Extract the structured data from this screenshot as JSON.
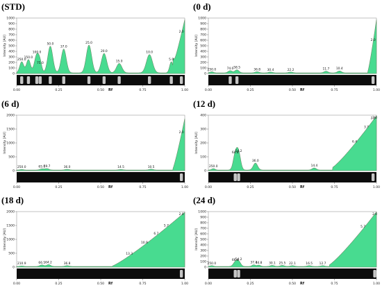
{
  "chart_data": [
    {
      "type": "area",
      "title": "(STD)",
      "ylabel": "Intensity [AU]",
      "xlabel": "Rf",
      "xlim": [
        0,
        1
      ],
      "ylim": [
        0,
        1000
      ],
      "yticks": [
        0,
        100,
        200,
        300,
        400,
        500,
        600,
        700,
        800,
        900,
        1000
      ],
      "xticks": [
        0.0,
        0.25,
        0.5,
        0.75,
        1.0
      ],
      "front": {
        "start": 0.93,
        "startValue": 150,
        "top": 960
      },
      "peaks": [
        {
          "rf": 0.03,
          "h": 200,
          "w": 0.012,
          "label": "250.0"
        },
        {
          "rf": 0.07,
          "h": 240,
          "w": 0.012,
          "label": "150.0"
        },
        {
          "rf": 0.12,
          "h": 330,
          "w": 0.014,
          "label": "100.0"
        },
        {
          "rf": 0.14,
          "h": 140,
          "w": 0.01,
          "label": "75.0"
        },
        {
          "rf": 0.2,
          "h": 480,
          "w": 0.015,
          "label": "50.0"
        },
        {
          "rf": 0.28,
          "h": 430,
          "w": 0.015,
          "label": "37.0"
        },
        {
          "rf": 0.43,
          "h": 500,
          "w": 0.016,
          "label": "25.0"
        },
        {
          "rf": 0.52,
          "h": 350,
          "w": 0.016,
          "label": "20.0"
        },
        {
          "rf": 0.61,
          "h": 170,
          "w": 0.016,
          "label": "15.0"
        },
        {
          "rf": 0.79,
          "h": 330,
          "w": 0.018,
          "label": "10.0"
        },
        {
          "rf": 0.92,
          "h": 200,
          "w": 0.01,
          "label": "5.0"
        },
        {
          "rf": 0.98,
          "h": 0,
          "w": 0.01,
          "label": "2.0"
        }
      ],
      "bands": [
        0.03,
        0.07,
        0.12,
        0.14,
        0.2,
        0.28,
        0.43,
        0.52,
        0.61,
        0.79,
        0.92,
        0.98
      ]
    },
    {
      "type": "area",
      "title": "(0 d)",
      "ylabel": "Intensity [AU]",
      "xlabel": "Rf",
      "xlim": [
        0,
        1
      ],
      "ylim": [
        0,
        1000
      ],
      "yticks": [
        0,
        100,
        200,
        300,
        400,
        500,
        600,
        700,
        800,
        900,
        1000
      ],
      "xticks": [
        0.0,
        0.25,
        0.5,
        0.75,
        1.0
      ],
      "front": {
        "start": 0.95,
        "startValue": 40,
        "top": 960
      },
      "peaks": [
        {
          "rf": 0.02,
          "h": 20,
          "w": 0.01,
          "label": "250.0"
        },
        {
          "rf": 0.13,
          "h": 40,
          "w": 0.012,
          "label": "74.0"
        },
        {
          "rf": 0.17,
          "h": 55,
          "w": 0.012,
          "label": "58.5"
        },
        {
          "rf": 0.29,
          "h": 20,
          "w": 0.012,
          "label": "36.8"
        },
        {
          "rf": 0.37,
          "h": 15,
          "w": 0.012,
          "label": "30.4"
        },
        {
          "rf": 0.49,
          "h": 15,
          "w": 0.012,
          "label": "22.2"
        },
        {
          "rf": 0.7,
          "h": 30,
          "w": 0.012,
          "label": "11.7"
        },
        {
          "rf": 0.78,
          "h": 35,
          "w": 0.012,
          "label": "10.4"
        },
        {
          "rf": 0.98,
          "h": 0,
          "w": 0.01,
          "label": "2.0"
        }
      ],
      "bands": [
        0.13,
        0.17,
        0.98
      ]
    },
    {
      "type": "area",
      "title": "(6 d)",
      "ylabel": "Intensity [AU]",
      "xlabel": "Rf",
      "xlim": [
        0,
        1
      ],
      "ylim": [
        0,
        2000
      ],
      "yticks": [
        0,
        500,
        1000,
        1500,
        2000
      ],
      "xticks": [
        0.0,
        0.25,
        0.5,
        0.75,
        1.0
      ],
      "front": {
        "start": 0.93,
        "startValue": 60,
        "top": 1850
      },
      "peaks": [
        {
          "rf": 0.03,
          "h": 20,
          "w": 0.01,
          "label": "250.0"
        },
        {
          "rf": 0.15,
          "h": 40,
          "w": 0.012,
          "label": "65.0"
        },
        {
          "rf": 0.18,
          "h": 50,
          "w": 0.012,
          "label": "59.7"
        },
        {
          "rf": 0.3,
          "h": 25,
          "w": 0.012,
          "label": "36.0"
        },
        {
          "rf": 0.62,
          "h": 20,
          "w": 0.012,
          "label": "14.5"
        },
        {
          "rf": 0.8,
          "h": 30,
          "w": 0.012,
          "label": "10.5"
        },
        {
          "rf": 0.98,
          "h": 0,
          "w": 0.01,
          "label": "2.0"
        }
      ],
      "bands": [
        0.98
      ]
    },
    {
      "type": "area",
      "title": "(12 d)",
      "ylabel": "Intensity [AU]",
      "xlabel": "Rf",
      "xlim": [
        0,
        1
      ],
      "ylim": [
        0,
        400
      ],
      "yticks": [
        0,
        100,
        200,
        300,
        400
      ],
      "xticks": [
        0.0,
        0.25,
        0.5,
        0.75,
        1.0
      ],
      "front": {
        "start": 0.74,
        "startValue": 20,
        "top": 390
      },
      "peaks": [
        {
          "rf": 0.03,
          "h": 10,
          "w": 0.01,
          "label": "250.0"
        },
        {
          "rf": 0.16,
          "h": 110,
          "w": 0.012,
          "label": "64.8"
        },
        {
          "rf": 0.18,
          "h": 120,
          "w": 0.012,
          "label": "54.2"
        },
        {
          "rf": 0.28,
          "h": 50,
          "w": 0.013,
          "label": "36.0"
        },
        {
          "rf": 0.63,
          "h": 15,
          "w": 0.012,
          "label": "14.4"
        },
        {
          "rf": 0.87,
          "h": 0,
          "w": 0.01,
          "label": "6.4"
        },
        {
          "rf": 0.94,
          "h": 0,
          "w": 0.01,
          "label": "3.7"
        },
        {
          "rf": 0.98,
          "h": 0,
          "w": 0.01,
          "label": "2.5"
        },
        {
          "rf": 0.99,
          "h": 0,
          "w": 0.01,
          "label": "2.0"
        }
      ],
      "bands": [
        0.16,
        0.18,
        0.98
      ]
    },
    {
      "type": "area",
      "title": "(18 d)",
      "ylabel": "Intensity [AU]",
      "xlabel": "Rf",
      "xlim": [
        0,
        1
      ],
      "ylim": [
        0,
        2000
      ],
      "yticks": [
        0,
        500,
        1000,
        1500,
        2000
      ],
      "xticks": [
        0.0,
        0.25,
        0.5,
        0.75,
        1.0
      ],
      "front": {
        "start": 0.57,
        "startValue": 20,
        "top": 1950
      },
      "peaks": [
        {
          "rf": 0.03,
          "h": 20,
          "w": 0.01,
          "label": "210.9"
        },
        {
          "rf": 0.15,
          "h": 55,
          "w": 0.012,
          "label": "66.5"
        },
        {
          "rf": 0.19,
          "h": 65,
          "w": 0.012,
          "label": "64.2"
        },
        {
          "rf": 0.3,
          "h": 30,
          "w": 0.012,
          "label": "36.8"
        },
        {
          "rf": 0.67,
          "h": 0,
          "w": 0.01,
          "label": "13.3"
        },
        {
          "rf": 0.76,
          "h": 0,
          "w": 0.01,
          "label": "10.9"
        },
        {
          "rf": 0.83,
          "h": 0,
          "w": 0.01,
          "label": "6.7"
        },
        {
          "rf": 0.89,
          "h": 0,
          "w": 0.01,
          "label": "5.7"
        },
        {
          "rf": 0.98,
          "h": 0,
          "w": 0.01,
          "label": "2.0"
        }
      ],
      "bands": [
        0.98
      ]
    },
    {
      "type": "area",
      "title": "(24 d)",
      "ylabel": "Intensity [AU]",
      "xlabel": "Rf",
      "xlim": [
        0,
        1
      ],
      "ylim": [
        0,
        1000
      ],
      "yticks": [
        0,
        100,
        200,
        300,
        400,
        500,
        600,
        700,
        800,
        900,
        1000
      ],
      "xticks": [
        0.0,
        0.25,
        0.5,
        0.75,
        1.0
      ],
      "front": {
        "start": 0.72,
        "startValue": 30,
        "top": 980
      },
      "peaks": [
        {
          "rf": 0.02,
          "h": 15,
          "w": 0.01,
          "label": "250.0"
        },
        {
          "rf": 0.16,
          "h": 75,
          "w": 0.012,
          "label": "66.4"
        },
        {
          "rf": 0.18,
          "h": 90,
          "w": 0.012,
          "label": "54.2"
        },
        {
          "rf": 0.27,
          "h": 30,
          "w": 0.01,
          "label": "37.4"
        },
        {
          "rf": 0.3,
          "h": 25,
          "w": 0.01,
          "label": "34.8"
        },
        {
          "rf": 0.38,
          "h": 20,
          "w": 0.012,
          "label": "30.1"
        },
        {
          "rf": 0.44,
          "h": 20,
          "w": 0.012,
          "label": "25.5"
        },
        {
          "rf": 0.5,
          "h": 15,
          "w": 0.012,
          "label": "22.1"
        },
        {
          "rf": 0.6,
          "h": 15,
          "w": 0.012,
          "label": "16.5"
        },
        {
          "rf": 0.68,
          "h": 15,
          "w": 0.012,
          "label": "12.7"
        },
        {
          "rf": 0.92,
          "h": 0,
          "w": 0.01,
          "label": "5.7"
        },
        {
          "rf": 0.99,
          "h": 0,
          "w": 0.01,
          "label": "2.0"
        }
      ],
      "bands": [
        0.16,
        0.18,
        0.99
      ]
    }
  ]
}
